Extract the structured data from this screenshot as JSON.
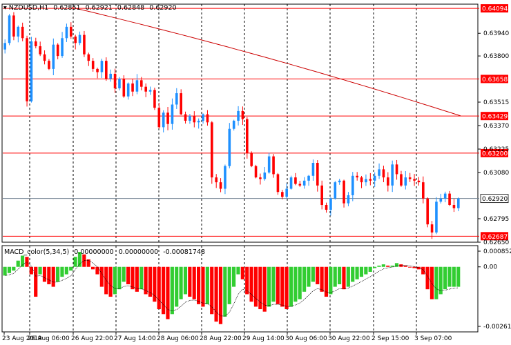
{
  "symbol_header": {
    "symbol": "NZDUSD,H1",
    "open": "0.62851",
    "high": "0.62921",
    "low": "0.62848",
    "close": "0.62920"
  },
  "indicator_header": {
    "name": "MACD_color(5,34,5)",
    "v1": "0.00000000",
    "v2": "0.00000000",
    "v3": "-0.00081748"
  },
  "colors": {
    "bull": "#1E90FF",
    "bear": "#FF0000",
    "macd_up": "#32CD32",
    "macd_down": "#FF0000",
    "ma_line": "#CC0000",
    "level_line": "#FF0000",
    "current_line": "#708090",
    "grid_dashed": "#000000",
    "label_bg": "#FF0000",
    "label_fg": "#FFFFFF"
  },
  "chart_data": {
    "type": "candlestick",
    "y_range": [
      0.6265,
      0.6412
    ],
    "price_scale_labels": [
      "0.63940",
      "0.63800",
      "0.63515",
      "0.63370",
      "0.63225",
      "0.63080",
      "0.62795",
      "0.62650"
    ],
    "levels": [
      "0.64094",
      "0.63658",
      "0.63429",
      "0.63200",
      "0.62687"
    ],
    "current_price": "0.62920",
    "time_labels": [
      "23 Aug 2019",
      "26 Aug 06:00",
      "26 Aug 22:00",
      "27 Aug 14:00",
      "28 Aug 06:00",
      "28 Aug 22:00",
      "29 Aug 14:00",
      "30 Aug 06:00",
      "30 Aug 22:00",
      "2 Sep 15:00",
      "3 Sep 07:00"
    ],
    "close_path": [
      0.6388,
      0.6405,
      0.6392,
      0.6398,
      0.6391,
      0.6352,
      0.6389,
      0.6386,
      0.6381,
      0.6377,
      0.6372,
      0.6387,
      0.638,
      0.6391,
      0.6398,
      0.6392,
      0.6388,
      0.6393,
      0.6381,
      0.6377,
      0.6372,
      0.637,
      0.6377,
      0.6366,
      0.6369,
      0.636,
      0.6366,
      0.6355,
      0.6363,
      0.6358,
      0.6365,
      0.6361,
      0.6358,
      0.6359,
      0.6348,
      0.6336,
      0.6345,
      0.6338,
      0.635,
      0.6357,
      0.6344,
      0.634,
      0.6343,
      0.6339,
      0.634,
      0.6344,
      0.6339,
      0.6305,
      0.6302,
      0.6298,
      0.6312,
      0.6335,
      0.634,
      0.6346,
      0.6341,
      0.632,
      0.6312,
      0.6305,
      0.6304,
      0.6308,
      0.6318,
      0.6307,
      0.6296,
      0.6293,
      0.6298,
      0.6305,
      0.6301,
      0.63,
      0.6303,
      0.6306,
      0.6314,
      0.63,
      0.6288,
      0.6285,
      0.6292,
      0.6302,
      0.6303,
      0.6289,
      0.6294,
      0.6306,
      0.6305,
      0.6302,
      0.6304,
      0.6303,
      0.6306,
      0.631,
      0.6305,
      0.63,
      0.6313,
      0.6307,
      0.63,
      0.6305,
      0.6304,
      0.6303,
      0.6302,
      0.6292,
      0.6276,
      0.6271,
      0.629,
      0.6292,
      0.6295,
      0.6288,
      0.6286,
      0.6292
    ],
    "ma_line": {
      "from": 0.641,
      "to": 0.6343
    },
    "macd": {
      "y_range": [
        -0.002613,
        0.000852
      ],
      "scale_labels": [
        "0.000852",
        "0.00",
        "-0.002613"
      ],
      "values": [
        -0.00035,
        -0.00025,
        -0.00015,
        0.00025,
        0.00045,
        0.0004,
        -0.0003,
        -0.0012,
        -0.0003,
        -0.0006,
        -0.0007,
        -0.0008,
        -0.0006,
        -0.0004,
        -0.0003,
        -0.00015,
        0.0004,
        0.0006,
        0.0005,
        0.0003,
        -0.0001,
        -0.0003,
        -0.0008,
        -0.0011,
        -0.0012,
        -0.0011,
        -0.0009,
        -0.0006,
        -0.0007,
        -0.0009,
        -0.001,
        -0.0009,
        -0.0011,
        -0.0012,
        -0.0014,
        -0.0017,
        -0.0019,
        -0.0021,
        -0.0019,
        -0.0016,
        -0.0013,
        -0.0011,
        -0.0012,
        -0.0013,
        -0.0015,
        -0.0016,
        -0.0015,
        -0.0019,
        -0.0022,
        -0.0023,
        -0.002,
        -0.0015,
        -0.0008,
        -0.0003,
        -0.0005,
        -0.0011,
        -0.0014,
        -0.0016,
        -0.0017,
        -0.0018,
        -0.0016,
        -0.0014,
        -0.0015,
        -0.0016,
        -0.0017,
        -0.0016,
        -0.0014,
        -0.0013,
        -0.001,
        -0.0008,
        -0.0006,
        -0.0007,
        -0.001,
        -0.0012,
        -0.0011,
        -0.0008,
        -0.0007,
        -0.0009,
        -0.0008,
        -0.0006,
        -0.0005,
        -0.0004,
        -0.0003,
        -0.0002,
        -5e-05,
        5e-05,
        0.0001,
        5e-05,
        5e-05,
        0.00015,
        0.0001,
        5e-05,
        0.0,
        -5e-05,
        -0.0001,
        -0.0003,
        -0.0009,
        -0.0013,
        -0.0013,
        -0.0011,
        -0.0009,
        -0.0008,
        -0.0008,
        -0.0008
      ]
    }
  }
}
